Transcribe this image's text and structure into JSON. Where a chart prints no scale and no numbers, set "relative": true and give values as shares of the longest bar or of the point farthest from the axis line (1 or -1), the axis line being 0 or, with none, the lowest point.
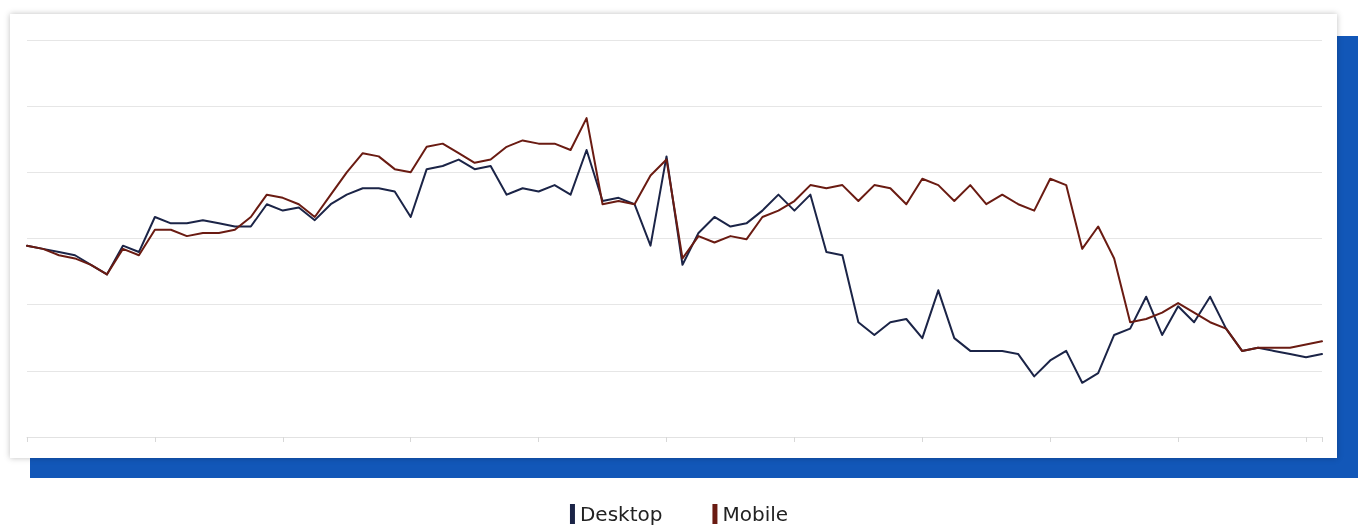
{
  "chart_data": {
    "type": "line",
    "relative": true,
    "grid": "y",
    "legend": "bottom",
    "marker": "none",
    "line_style": "solid",
    "categories": [
      null,
      null,
      null,
      null,
      null,
      null,
      null,
      null,
      null,
      null,
      null,
      null,
      null,
      null,
      null,
      null,
      null,
      null,
      null,
      null,
      null,
      null,
      null,
      null,
      null,
      null,
      null,
      null,
      null,
      null,
      null,
      null,
      null,
      null,
      null,
      null,
      null,
      null,
      null,
      null,
      null,
      null,
      null,
      null,
      null,
      null,
      null,
      null,
      null,
      null,
      null,
      null,
      null,
      null,
      null,
      null,
      null,
      null,
      null,
      null,
      null,
      null,
      null,
      null,
      null,
      null,
      null,
      null,
      null,
      null,
      null,
      null,
      null,
      null,
      null,
      null,
      null,
      null,
      null,
      null,
      null,
      null
    ],
    "series": [
      {
        "name": "Desktop",
        "color": "#1b2447",
        "values": [
          0.6,
          0.59,
          0.58,
          0.57,
          0.54,
          0.51,
          0.6,
          0.58,
          0.69,
          0.67,
          0.67,
          0.68,
          0.67,
          0.66,
          0.66,
          0.73,
          0.71,
          0.72,
          0.68,
          0.73,
          0.76,
          0.78,
          0.78,
          0.77,
          0.69,
          0.84,
          0.85,
          0.87,
          0.84,
          0.85,
          0.76,
          0.78,
          0.77,
          0.79,
          0.76,
          0.9,
          0.74,
          0.75,
          0.73,
          0.6,
          0.88,
          0.54,
          0.64,
          0.69,
          0.66,
          0.67,
          0.71,
          0.76,
          0.71,
          0.76,
          0.58,
          0.57,
          0.36,
          0.32,
          0.36,
          0.37,
          0.31,
          0.46,
          0.31,
          0.27,
          0.27,
          0.27,
          0.26,
          0.19,
          0.24,
          0.27,
          0.17,
          0.2,
          0.32,
          0.34,
          0.44,
          0.32,
          0.41,
          0.36,
          0.44,
          0.34,
          0.27,
          0.28,
          0.27,
          0.26,
          0.25,
          0.26
        ]
      },
      {
        "name": "Mobile",
        "color": "#6a1b12",
        "values": [
          0.6,
          0.59,
          0.57,
          0.56,
          0.54,
          0.51,
          0.59,
          0.57,
          0.65,
          0.65,
          0.63,
          0.64,
          0.64,
          0.65,
          0.69,
          0.76,
          0.75,
          0.73,
          0.69,
          0.76,
          0.83,
          0.89,
          0.88,
          0.84,
          0.83,
          0.91,
          0.92,
          0.89,
          0.86,
          0.87,
          0.91,
          0.93,
          0.92,
          0.92,
          0.9,
          1.0,
          0.73,
          0.74,
          0.73,
          0.82,
          0.87,
          0.56,
          0.63,
          0.61,
          0.63,
          0.62,
          0.69,
          0.71,
          0.74,
          0.79,
          0.78,
          0.79,
          0.74,
          0.79,
          0.78,
          0.73,
          0.81,
          0.79,
          0.74,
          0.79,
          0.73,
          0.76,
          0.73,
          0.71,
          0.81,
          0.79,
          0.59,
          0.66,
          0.56,
          0.36,
          0.37,
          0.39,
          0.42,
          0.39,
          0.36,
          0.34,
          0.27,
          0.28,
          0.28,
          0.28,
          0.29,
          0.3
        ]
      }
    ]
  }
}
